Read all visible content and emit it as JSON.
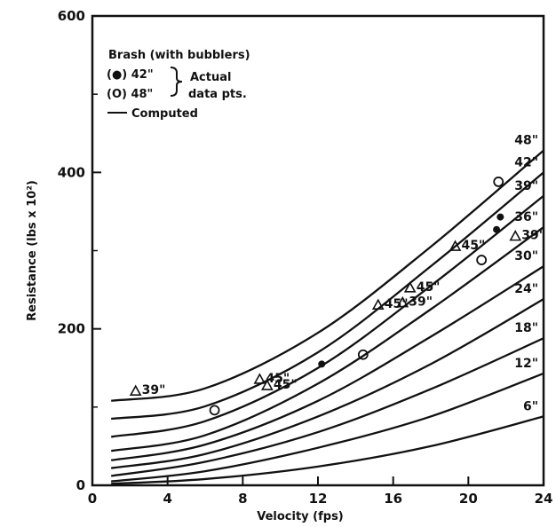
{
  "chart_data": {
    "type": "line",
    "xlabel": "Velocity (fps)",
    "ylabel": "Resistance (lbs x 10²)",
    "xlim": [
      0,
      24
    ],
    "ylim": [
      0,
      600
    ],
    "xticks": [
      {
        "value": 0,
        "label": "0"
      },
      {
        "value": 4,
        "label": "4"
      },
      {
        "value": 8,
        "label": "8"
      },
      {
        "value": 12,
        "label": "12"
      },
      {
        "value": 16,
        "label": "16"
      },
      {
        "value": 20,
        "label": "20"
      },
      {
        "value": 24,
        "label": "24"
      }
    ],
    "yticks": [
      {
        "value": 0,
        "label": "0"
      },
      {
        "value": 200,
        "label": "200"
      },
      {
        "value": 400,
        "label": "400"
      },
      {
        "value": 600,
        "label": "600"
      }
    ],
    "legend": {
      "title": "Brash (with bubblers)",
      "filled_label": "(●) 42\"",
      "open_label": "(O) 48\"",
      "actual_line1": "Actual",
      "actual_line2": "data pts.",
      "computed_label": "Computed"
    },
    "series": [
      {
        "name": "6\"",
        "x": [
          1,
          6,
          12,
          18,
          24
        ],
        "y": [
          2,
          8,
          24,
          50,
          88
        ]
      },
      {
        "name": "12\"",
        "x": [
          1,
          6,
          12,
          18,
          24
        ],
        "y": [
          5,
          18,
          48,
          88,
          143
        ]
      },
      {
        "name": "18\"",
        "x": [
          1,
          6,
          12,
          18,
          24
        ],
        "y": [
          12,
          30,
          68,
          123,
          188
        ]
      },
      {
        "name": "24\"",
        "x": [
          1,
          6,
          12,
          18,
          24
        ],
        "y": [
          22,
          40,
          88,
          155,
          238
        ]
      },
      {
        "name": "30\"",
        "x": [
          1,
          6,
          12,
          18,
          24
        ],
        "y": [
          32,
          52,
          108,
          190,
          280
        ]
      },
      {
        "name": "36\"",
        "x": [
          1,
          6,
          12,
          18,
          24
        ],
        "y": [
          44,
          64,
          130,
          225,
          330
        ]
      },
      {
        "name": "39\"",
        "x": [
          1,
          6,
          12,
          18,
          24
        ],
        "y": [
          62,
          82,
          150,
          255,
          370
        ]
      },
      {
        "name": "42\"",
        "x": [
          1,
          6,
          12,
          18,
          24
        ],
        "y": [
          85,
          101,
          170,
          280,
          400
        ]
      },
      {
        "name": "48\"",
        "x": [
          1,
          6,
          12,
          18,
          24
        ],
        "y": [
          108,
          124,
          195,
          305,
          428
        ]
      }
    ],
    "filled_points": [
      {
        "x": 12.2,
        "y": 155
      },
      {
        "x": 21.5,
        "y": 327
      },
      {
        "x": 21.7,
        "y": 343
      }
    ],
    "open_points": [
      {
        "x": 6.5,
        "y": 96
      },
      {
        "x": 14.4,
        "y": 167
      },
      {
        "x": 20.7,
        "y": 288
      },
      {
        "x": 21.6,
        "y": 388
      }
    ],
    "triangle_points": [
      {
        "x": 2.3,
        "y": 120,
        "label": "39\""
      },
      {
        "x": 8.9,
        "y": 135,
        "label": "45\""
      },
      {
        "x": 9.3,
        "y": 127,
        "label": "45\""
      },
      {
        "x": 15.2,
        "y": 230,
        "label": "45\""
      },
      {
        "x": 16.5,
        "y": 233,
        "label": "39\""
      },
      {
        "x": 16.9,
        "y": 252,
        "label": "45\""
      },
      {
        "x": 19.3,
        "y": 305,
        "label": "45\""
      },
      {
        "x": 22.5,
        "y": 318,
        "label": "39\""
      }
    ]
  }
}
